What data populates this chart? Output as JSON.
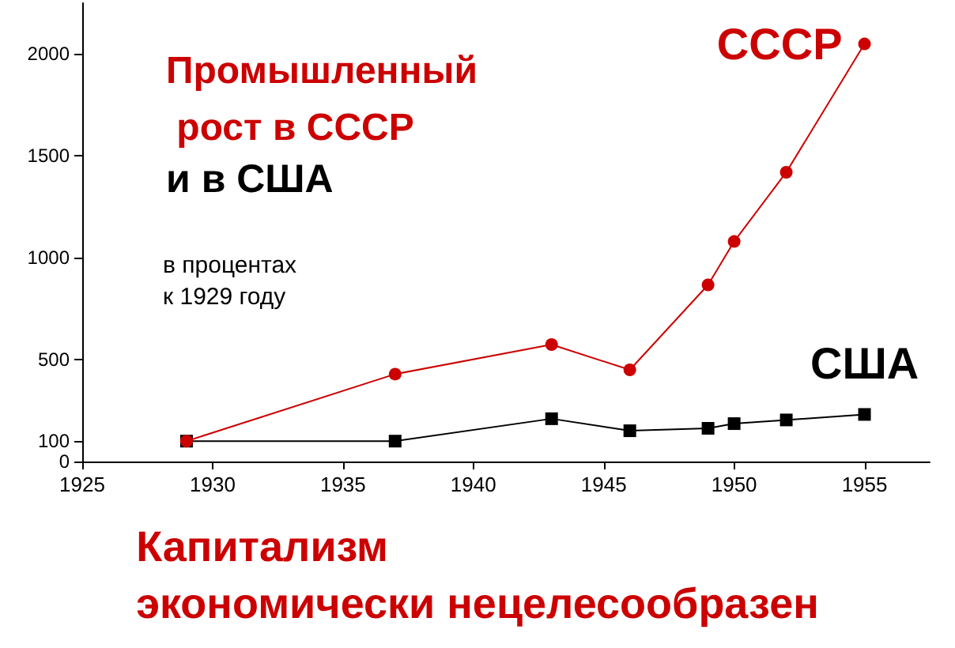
{
  "chart_data": {
    "type": "line",
    "title": "Промышленный рост в СССР",
    "subtitle": "и в США",
    "annotations": [
      "в процентах\nк 1929 году",
      "Капитализм\nэкономически нецелесообразен"
    ],
    "xlim": [
      1925,
      1957.5
    ],
    "xticks": [
      1925,
      1930,
      1935,
      1940,
      1945,
      1950,
      1955
    ],
    "ylim": [
      0,
      2250
    ],
    "yticks": [
      0,
      100,
      500,
      1000,
      1500,
      2000
    ],
    "grid": false,
    "legend": false,
    "series": [
      {
        "name": "СССР",
        "color": "#cc0000",
        "marker": "circle",
        "x": [
          1929,
          1937,
          1943,
          1946,
          1949,
          1950,
          1952,
          1955
        ],
        "values": [
          100,
          429,
          574,
          450,
          867,
          1080,
          1420,
          2050
        ]
      },
      {
        "name": "США",
        "color": "#000000",
        "marker": "square",
        "x": [
          1929,
          1937,
          1943,
          1946,
          1949,
          1950,
          1952,
          1955
        ],
        "values": [
          100,
          100,
          210,
          151,
          163,
          186,
          204,
          231
        ]
      }
    ]
  }
}
